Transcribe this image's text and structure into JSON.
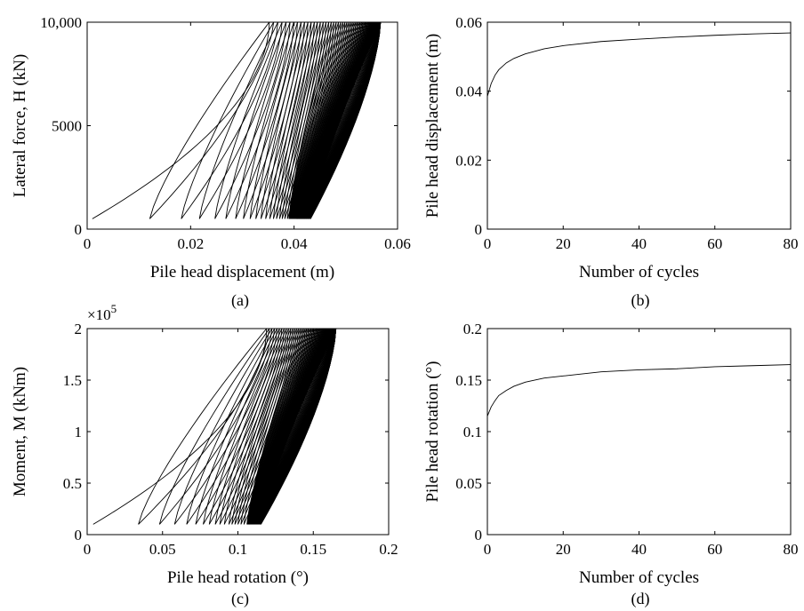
{
  "chart_data": [
    {
      "id": "a",
      "type": "line",
      "caption": "(a)",
      "xlabel": "Pile head displacement (m)",
      "ylabel": "Lateral force, H (kN)",
      "xlim": [
        0,
        0.06
      ],
      "ylim": [
        0,
        10000
      ],
      "xticks": [
        0,
        0.02,
        0.04,
        0.06
      ],
      "xtick_labels": [
        "0",
        "0.02",
        "0.04",
        "0.06"
      ],
      "yticks": [
        0,
        5000,
        10000
      ],
      "ytick_labels": [
        "0",
        "5000",
        "10,000"
      ],
      "y_multiplier_label": "",
      "grid": false,
      "cycles": 80,
      "first_loading": {
        "x_start": 0.001,
        "x_peak": 0.0352,
        "y_start": 500,
        "y_peak": 10000
      },
      "unloading_residual_x": [
        0.0121,
        0.0182,
        0.0217,
        0.0247,
        0.0268,
        0.0287,
        0.0302,
        0.0315,
        0.0326,
        0.0336,
        0.0345,
        0.0353,
        0.036,
        0.0366,
        0.0372,
        0.0377,
        0.0382,
        0.0387,
        0.039
      ],
      "peak_x_final": 0.0567
    },
    {
      "id": "b",
      "type": "line",
      "caption": "(b)",
      "xlabel": "Number of cycles",
      "ylabel": "Pile head displacement (m)",
      "xlim": [
        0,
        80
      ],
      "ylim": [
        0,
        0.06
      ],
      "xticks": [
        0,
        20,
        40,
        60,
        80
      ],
      "xtick_labels": [
        "0",
        "20",
        "40",
        "60",
        "80"
      ],
      "yticks": [
        0,
        0.02,
        0.04,
        0.06
      ],
      "ytick_labels": [
        "0",
        "0.02",
        "0.04",
        "0.06"
      ],
      "grid": false,
      "series": [
        {
          "x": [
            0,
            1,
            2,
            3,
            5,
            7,
            10,
            15,
            20,
            30,
            40,
            50,
            60,
            70,
            80
          ],
          "y": [
            0.0385,
            0.0422,
            0.0446,
            0.0462,
            0.0482,
            0.0495,
            0.0508,
            0.0523,
            0.0532,
            0.0544,
            0.0551,
            0.0557,
            0.0562,
            0.0566,
            0.0569
          ]
        }
      ]
    },
    {
      "id": "c",
      "type": "line",
      "caption": "(c)",
      "xlabel": "Pile head rotation (°)",
      "ylabel": "Moment, M (kNm)",
      "xlim": [
        0,
        0.2
      ],
      "ylim": [
        0,
        200000
      ],
      "xticks": [
        0,
        0.05,
        0.1,
        0.15,
        0.2
      ],
      "xtick_labels": [
        "0",
        "0.05",
        "0.1",
        "0.15",
        "0.2"
      ],
      "yticks": [
        0,
        50000,
        100000,
        150000,
        200000
      ],
      "ytick_labels": [
        "0",
        "0.5",
        "1",
        "1.5",
        "2"
      ],
      "y_multiplier_label": "×10",
      "y_multiplier_exp": "5",
      "grid": false,
      "cycles": 80,
      "first_loading": {
        "x_start": 0.004,
        "x_peak": 0.119,
        "y_start": 10000,
        "y_peak": 200000
      },
      "unloading_residual_x": [
        0.034,
        0.048,
        0.058,
        0.066,
        0.072,
        0.077,
        0.081,
        0.085,
        0.088,
        0.091,
        0.094,
        0.096,
        0.098,
        0.1,
        0.102,
        0.104,
        0.106
      ],
      "peak_x_final": 0.165
    },
    {
      "id": "d",
      "type": "line",
      "caption": "(d)",
      "xlabel": "Number of cycles",
      "ylabel": "Pile head rotation (°)",
      "xlim": [
        0,
        80
      ],
      "ylim": [
        0,
        0.2
      ],
      "xticks": [
        0,
        20,
        40,
        60,
        80
      ],
      "xtick_labels": [
        "0",
        "20",
        "40",
        "60",
        "80"
      ],
      "yticks": [
        0,
        0.05,
        0.1,
        0.15,
        0.2
      ],
      "ytick_labels": [
        "0",
        "0.05",
        "0.1",
        "0.15",
        "0.2"
      ],
      "grid": false,
      "series": [
        {
          "x": [
            0,
            1,
            2,
            3,
            5,
            7,
            10,
            15,
            20,
            30,
            40,
            50,
            60,
            70,
            80
          ],
          "y": [
            0.115,
            0.124,
            0.13,
            0.135,
            0.14,
            0.144,
            0.148,
            0.152,
            0.154,
            0.158,
            0.16,
            0.161,
            0.163,
            0.164,
            0.165
          ]
        }
      ]
    }
  ]
}
